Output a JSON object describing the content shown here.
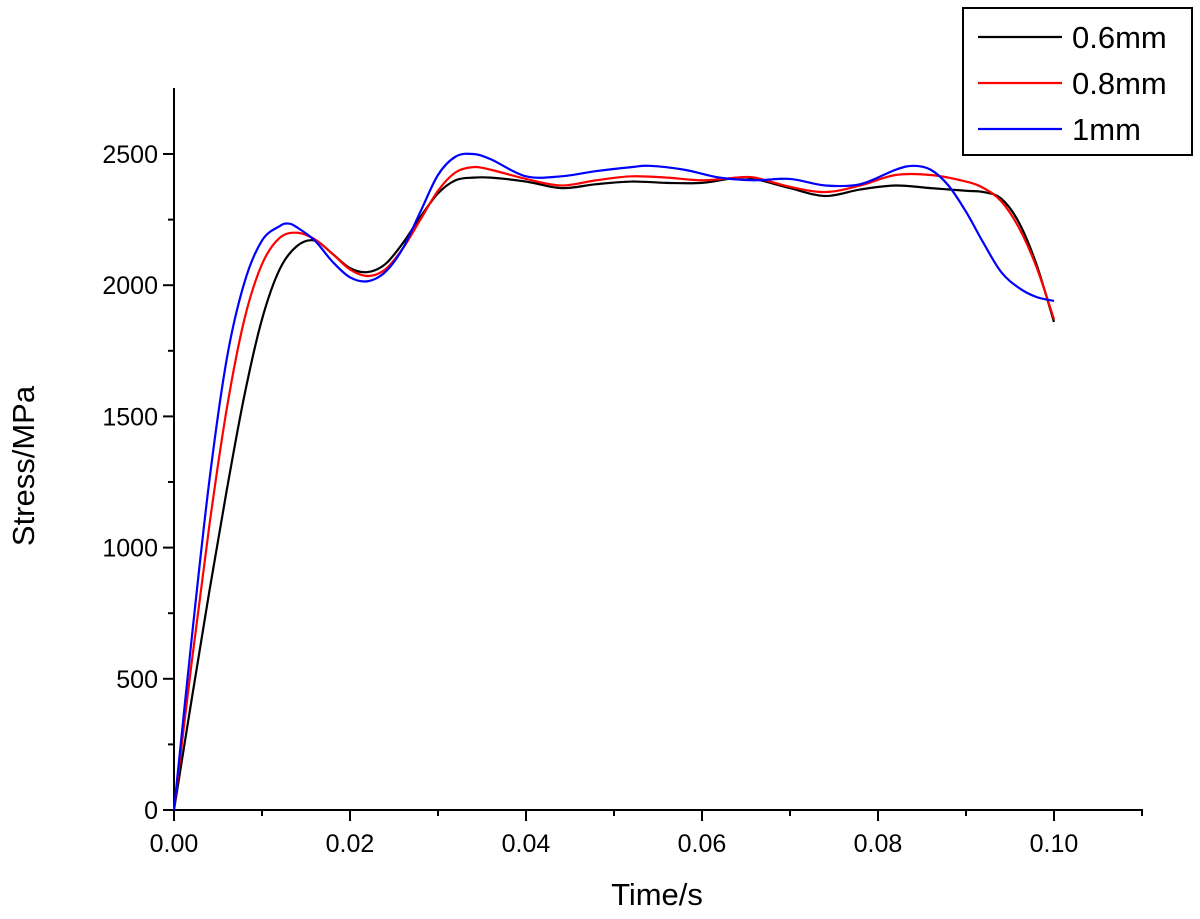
{
  "chart_data": {
    "type": "line",
    "title": "",
    "xlabel": "Time/s",
    "ylabel": "Stress/MPa",
    "xlim": [
      0,
      0.11
    ],
    "ylim": [
      0,
      2750
    ],
    "xticks": [
      "0.00",
      "0.02",
      "0.04",
      "0.06",
      "0.08",
      "0.10"
    ],
    "xtick_values": [
      0,
      0.02,
      0.04,
      0.06,
      0.08,
      0.1
    ],
    "yticks": [
      "0",
      "500",
      "1000",
      "1500",
      "2000",
      "2500"
    ],
    "ytick_values": [
      0,
      500,
      1000,
      1500,
      2000,
      2500
    ],
    "grid": false,
    "legend_position": "top-right",
    "series": [
      {
        "name": "0.6mm",
        "color": "#000000",
        "x": [
          0,
          0.002,
          0.004,
          0.006,
          0.008,
          0.01,
          0.012,
          0.014,
          0.016,
          0.018,
          0.02,
          0.022,
          0.024,
          0.026,
          0.028,
          0.03,
          0.032,
          0.034,
          0.036,
          0.04,
          0.044,
          0.048,
          0.052,
          0.056,
          0.06,
          0.064,
          0.066,
          0.07,
          0.074,
          0.078,
          0.082,
          0.086,
          0.09,
          0.092,
          0.094,
          0.096,
          0.098,
          0.1
        ],
        "y": [
          0,
          420,
          830,
          1220,
          1580,
          1870,
          2060,
          2150,
          2170,
          2120,
          2065,
          2050,
          2080,
          2160,
          2260,
          2350,
          2400,
          2410,
          2410,
          2395,
          2370,
          2385,
          2395,
          2390,
          2390,
          2410,
          2405,
          2370,
          2340,
          2365,
          2380,
          2370,
          2360,
          2355,
          2330,
          2240,
          2080,
          1860
        ]
      },
      {
        "name": "0.8mm",
        "color": "#ff0000",
        "x": [
          0,
          0.002,
          0.004,
          0.006,
          0.008,
          0.01,
          0.012,
          0.014,
          0.016,
          0.018,
          0.02,
          0.022,
          0.024,
          0.026,
          0.028,
          0.03,
          0.032,
          0.034,
          0.036,
          0.04,
          0.044,
          0.048,
          0.052,
          0.056,
          0.06,
          0.064,
          0.066,
          0.07,
          0.074,
          0.078,
          0.082,
          0.086,
          0.09,
          0.092,
          0.094,
          0.096,
          0.098,
          0.1
        ],
        "y": [
          0,
          560,
          1080,
          1530,
          1870,
          2080,
          2180,
          2200,
          2175,
          2120,
          2060,
          2035,
          2060,
          2140,
          2250,
          2360,
          2430,
          2450,
          2440,
          2405,
          2380,
          2400,
          2415,
          2410,
          2400,
          2410,
          2410,
          2375,
          2355,
          2380,
          2420,
          2420,
          2395,
          2370,
          2320,
          2220,
          2070,
          1870
        ]
      },
      {
        "name": "1mm",
        "color": "#0000ff",
        "x": [
          0,
          0.002,
          0.004,
          0.006,
          0.008,
          0.01,
          0.012,
          0.013,
          0.014,
          0.016,
          0.018,
          0.02,
          0.022,
          0.024,
          0.026,
          0.028,
          0.03,
          0.032,
          0.034,
          0.036,
          0.04,
          0.044,
          0.048,
          0.052,
          0.054,
          0.058,
          0.062,
          0.066,
          0.07,
          0.074,
          0.078,
          0.082,
          0.084,
          0.086,
          0.088,
          0.09,
          0.092,
          0.094,
          0.096,
          0.098,
          0.1
        ],
        "y": [
          0,
          650,
          1250,
          1720,
          2010,
          2170,
          2225,
          2235,
          2220,
          2170,
          2090,
          2030,
          2015,
          2050,
          2140,
          2280,
          2420,
          2490,
          2500,
          2480,
          2415,
          2415,
          2435,
          2450,
          2455,
          2440,
          2410,
          2400,
          2405,
          2380,
          2385,
          2440,
          2455,
          2440,
          2380,
          2280,
          2160,
          2050,
          1990,
          1955,
          1940
        ]
      }
    ]
  }
}
